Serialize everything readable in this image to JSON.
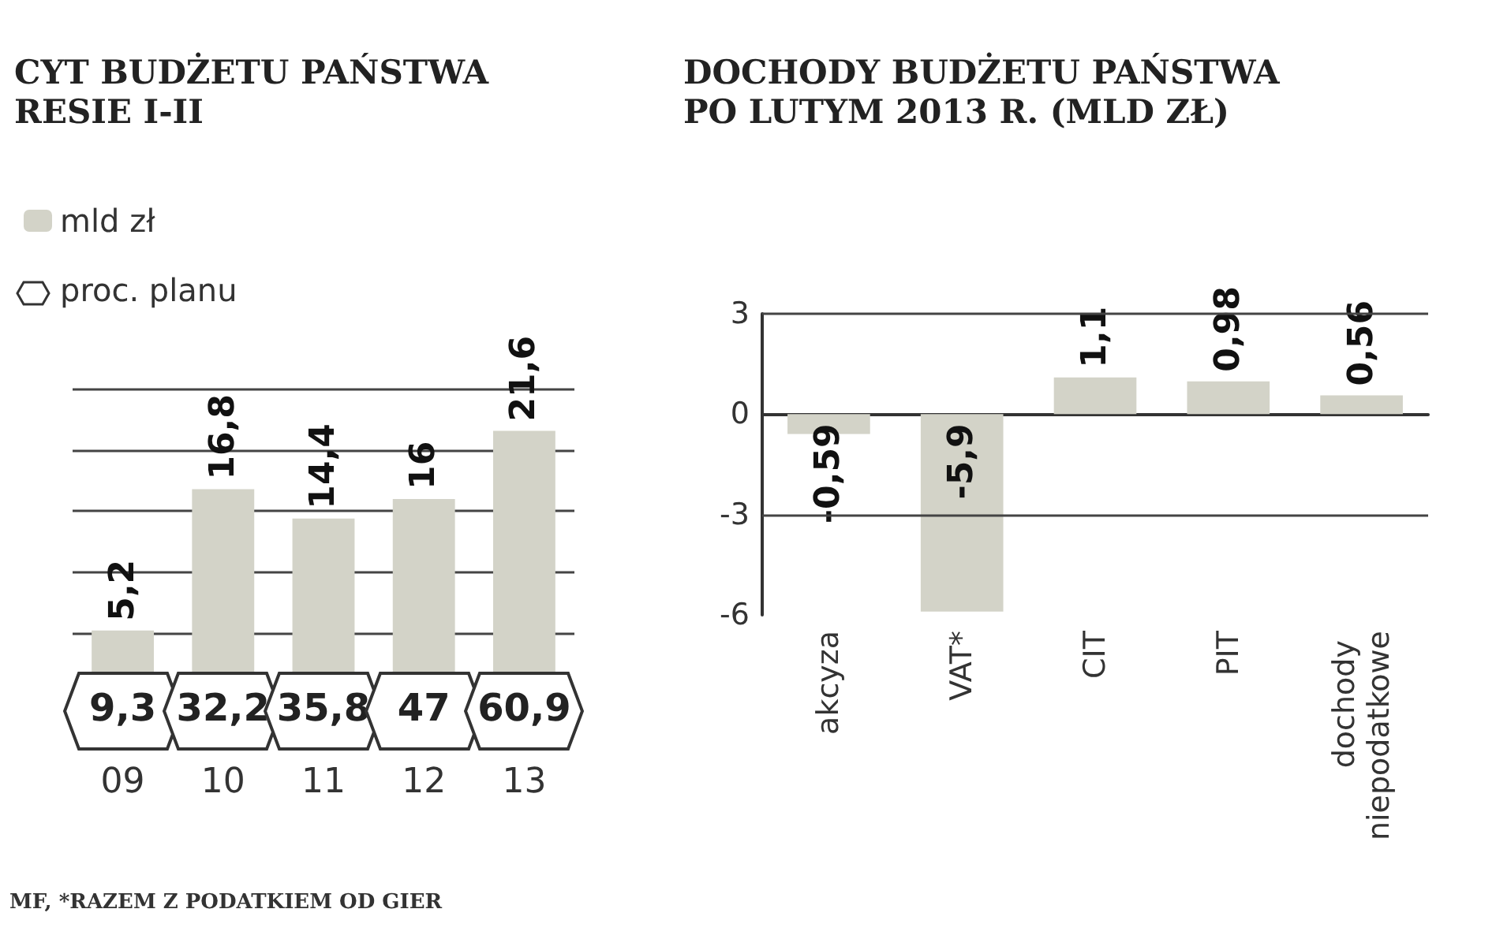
{
  "chart_data": [
    {
      "type": "bar",
      "title": "CYT BUDŻETU PAŃSTWA\nRESIE I-II",
      "categories": [
        "09",
        "10",
        "11",
        "12",
        "13"
      ],
      "series": [
        {
          "name": "mld zł",
          "color": "#d3d3c8",
          "values": [
            5.2,
            16.8,
            14.4,
            16,
            21.6
          ],
          "value_labels": [
            "5,2",
            "16,8",
            "14,4",
            "16",
            "21,6"
          ]
        }
      ],
      "ylim": [
        0,
        25
      ],
      "yticks": [
        {
          "value": 5,
          "label": null
        },
        {
          "value": 10,
          "label": null
        },
        {
          "value": 15,
          "label": null
        },
        {
          "value": 20,
          "label": null
        },
        {
          "value": 25,
          "label": null
        }
      ],
      "grid": "y",
      "legend": "top left",
      "annotations": [
        "proc. planu",
        "9,3",
        "32,2",
        "35,8",
        "47",
        "60,9",
        "MF, *RAZEM Z PODATKIEM OD GIER"
      ]
    },
    {
      "type": "bar",
      "title": "DOCHODY BUDŻETU PAŃSTWA\nPO LUTYM 2013 R. (MLD ZŁ)",
      "categories": [
        "akcyza",
        "VAT*",
        "CIT",
        "PIT",
        "dochody niepodatkowe"
      ],
      "series": [
        {
          "color": "#d3d3c8",
          "values": [
            -0.59,
            -5.9,
            1.1,
            0.98,
            0.56
          ],
          "value_labels": [
            "-0,59",
            "-5,9",
            "1,1",
            "0,98",
            "0,56"
          ]
        }
      ],
      "ylim": [
        -6,
        3
      ],
      "yticks": [
        -6,
        -3,
        0,
        3
      ],
      "ref_lines": [
        {
          "axis": "y",
          "value": 3
        },
        {
          "axis": "y",
          "value": -3
        }
      ]
    }
  ]
}
